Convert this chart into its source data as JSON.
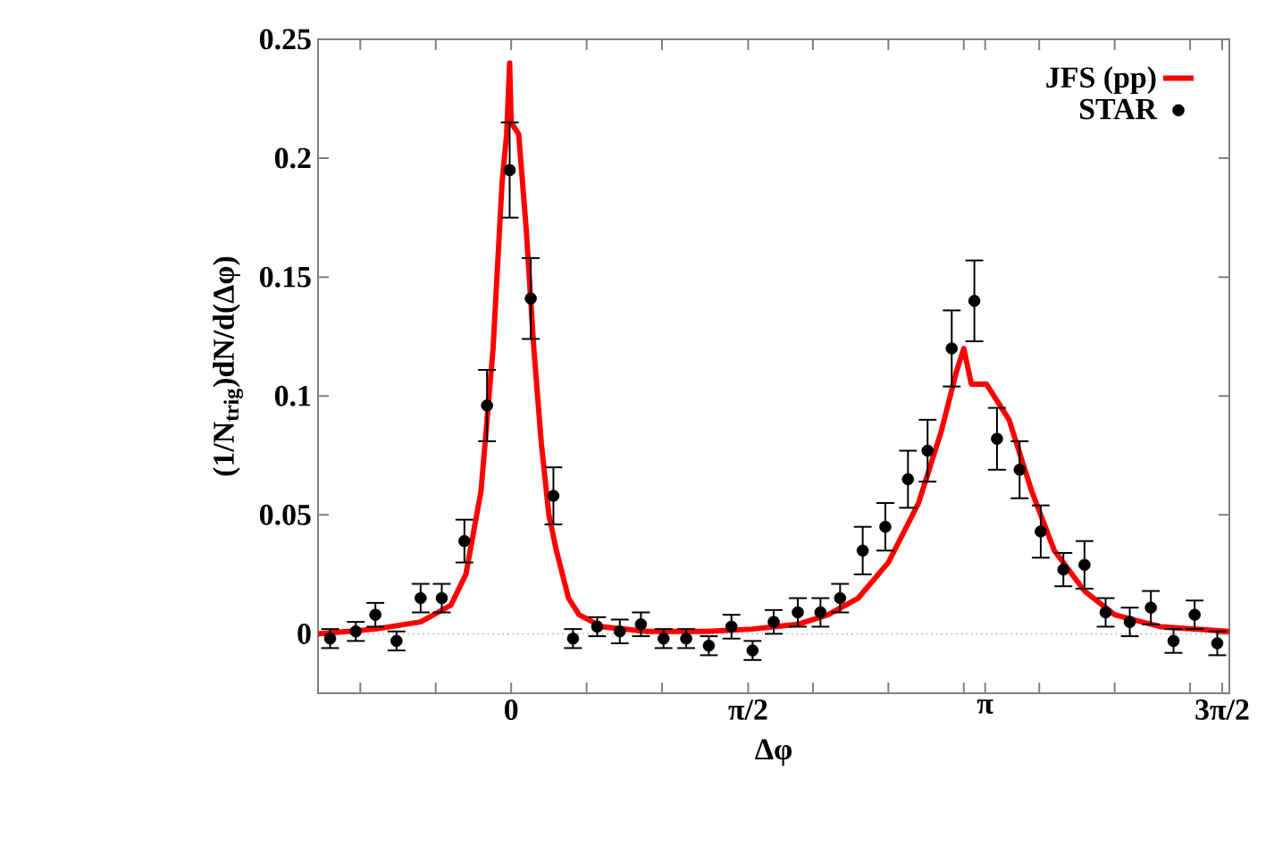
{
  "chart_data": {
    "type": "line",
    "xlabel": "Δφ",
    "ylabel": "(1/N$_{trig}$)dN/d(Δφ)",
    "xlim": [
      -1.28,
      4.76
    ],
    "ylim": [
      -0.025,
      0.25
    ],
    "xticks": [
      {
        "value": -1,
        "label": null
      },
      {
        "value": -0.5,
        "label": null
      },
      0,
      {
        "value": 0.5,
        "label": null
      },
      {
        "value": 1,
        "label": null
      },
      {
        "value": 1.5708,
        "label": "π/2"
      },
      {
        "value": 2,
        "label": null
      },
      {
        "value": 2.5,
        "label": null
      },
      {
        "value": 3,
        "label": null
      },
      {
        "value": 3.1416,
        "label": "π"
      },
      {
        "value": 3.5,
        "label": null
      },
      {
        "value": 4,
        "label": null
      },
      {
        "value": 4.5,
        "label": null
      },
      {
        "value": 4.7124,
        "label": "3π/2"
      }
    ],
    "yticks": [
      0,
      0.05,
      0.1,
      0.15,
      0.2,
      0.25
    ],
    "grid": false,
    "legend": "top right",
    "ref_lines": [
      {
        "axis": "y",
        "value": 0,
        "color": "#aaaaaa",
        "line_style": "dotted"
      }
    ],
    "series": [
      {
        "name": "JFS (pp)",
        "color": "#ff0000",
        "marker": "none",
        "line_style": "solid",
        "x": [
          -1.28,
          -0.9,
          -0.6,
          -0.4,
          -0.3,
          -0.2,
          -0.12,
          -0.06,
          -0.03,
          -0.01,
          0.0,
          0.05,
          0.1,
          0.15,
          0.2,
          0.25,
          0.3,
          0.38,
          0.45,
          0.6,
          0.9,
          1.3,
          1.6,
          1.9,
          2.1,
          2.3,
          2.5,
          2.7,
          2.85,
          2.95,
          3.0,
          3.05,
          3.15,
          3.3,
          3.45,
          3.6,
          3.8,
          4.0,
          4.3,
          4.76
        ],
        "values": [
          0.0,
          0.002,
          0.005,
          0.012,
          0.025,
          0.06,
          0.12,
          0.19,
          0.21,
          0.24,
          0.215,
          0.21,
          0.17,
          0.12,
          0.08,
          0.05,
          0.035,
          0.015,
          0.008,
          0.003,
          0.001,
          0.001,
          0.002,
          0.004,
          0.008,
          0.015,
          0.03,
          0.055,
          0.085,
          0.11,
          0.12,
          0.105,
          0.105,
          0.09,
          0.06,
          0.035,
          0.018,
          0.008,
          0.003,
          0.001
        ]
      },
      {
        "name": "STAR",
        "type": "scatter",
        "color": "#000000",
        "marker": "circle",
        "x": [
          -1.2,
          -1.03,
          -0.9,
          -0.76,
          -0.6,
          -0.46,
          -0.31,
          -0.16,
          -0.01,
          0.13,
          0.28,
          0.41,
          0.57,
          0.72,
          0.86,
          1.01,
          1.16,
          1.31,
          1.46,
          1.6,
          1.74,
          1.9,
          2.05,
          2.18,
          2.33,
          2.48,
          2.63,
          2.76,
          2.92,
          3.07,
          3.22,
          3.37,
          3.51,
          3.66,
          3.8,
          3.94,
          4.1,
          4.24,
          4.39,
          4.53,
          4.68
        ],
        "values": [
          -0.002,
          0.001,
          0.008,
          -0.003,
          0.015,
          0.015,
          0.039,
          0.096,
          0.195,
          0.141,
          0.058,
          -0.002,
          0.003,
          0.001,
          0.004,
          -0.002,
          -0.002,
          -0.005,
          0.003,
          -0.007,
          0.005,
          0.009,
          0.009,
          0.015,
          0.035,
          0.045,
          0.065,
          0.077,
          0.12,
          0.14,
          0.082,
          0.069,
          0.043,
          0.027,
          0.029,
          0.009,
          0.005,
          0.011,
          -0.003,
          0.008,
          -0.004
        ],
        "errors": [
          0.004,
          0.004,
          0.005,
          0.004,
          0.006,
          0.006,
          0.009,
          0.015,
          0.02,
          0.017,
          0.012,
          0.004,
          0.004,
          0.005,
          0.005,
          0.004,
          0.004,
          0.004,
          0.005,
          0.004,
          0.005,
          0.006,
          0.006,
          0.006,
          0.01,
          0.01,
          0.012,
          0.013,
          0.016,
          0.017,
          0.013,
          0.012,
          0.011,
          0.007,
          0.01,
          0.006,
          0.006,
          0.007,
          0.005,
          0.006,
          0.005
        ]
      }
    ]
  }
}
